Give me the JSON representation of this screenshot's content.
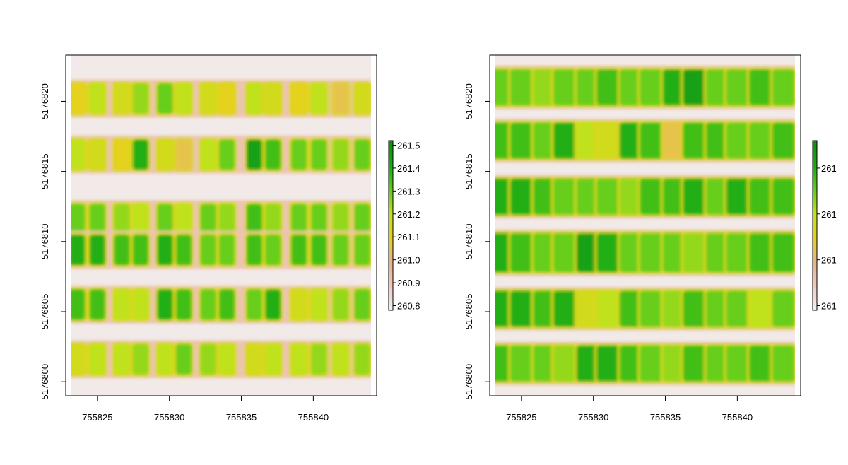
{
  "chart_data": [
    {
      "type": "heatmap",
      "title": "",
      "xlabel": "",
      "ylabel": "",
      "xlim": [
        755822.8,
        755844.4
      ],
      "ylim": [
        5176799.0,
        5176823.3
      ],
      "x_ticks": [
        755825,
        755830,
        755835,
        755840
      ],
      "x_tick_labels": [
        "755825",
        "755830",
        "755835",
        "755840"
      ],
      "y_ticks": [
        5176800,
        5176805,
        5176810,
        5176815,
        5176820
      ],
      "y_tick_labels": [
        "5176800",
        "5176805",
        "5176810",
        "5176815",
        "5176820"
      ],
      "colorbar": {
        "min": 260.78,
        "max": 261.52,
        "ticks": [
          260.8,
          260.9,
          261.0,
          261.1,
          261.2,
          261.3,
          261.4,
          261.5
        ],
        "tick_labels": [
          "260.8",
          "260.9",
          "261.0",
          "261.1",
          "261.2",
          "261.3",
          "261.4",
          "261.5"
        ],
        "colors": [
          "#f2f2f2",
          "#efc9be",
          "#e8b28a",
          "#e5d21a",
          "#bfe21a",
          "#5fcc1a",
          "#18aa18",
          "#0a8f0a"
        ]
      },
      "rows_y_center": [
        5176820.2,
        5176816.2,
        5176811.7,
        5176809.4,
        5176805.5,
        5176801.6
      ],
      "rows_y_half_height": [
        1.1,
        1.1,
        1.0,
        1.1,
        1.1,
        1.1
      ],
      "plot_columns_x_center": [
        755823.6,
        755825.0,
        755826.7,
        755828.0,
        755829.7,
        755831.0,
        755832.7,
        755834.0,
        755835.9,
        755837.2,
        755839.0,
        755840.4,
        755841.9,
        755843.4
      ],
      "plot_x_half_width": 0.55,
      "row_values": [
        [
          261.1,
          261.2,
          261.15,
          261.25,
          261.3,
          261.2,
          261.15,
          261.1,
          261.2,
          261.15,
          261.1,
          261.2,
          261.05,
          261.15
        ],
        [
          261.2,
          261.15,
          261.1,
          261.4,
          261.15,
          261.05,
          261.2,
          261.3,
          261.45,
          261.35,
          261.3,
          261.3,
          261.25,
          261.3
        ],
        [
          261.3,
          261.3,
          261.25,
          261.2,
          261.3,
          261.2,
          261.3,
          261.25,
          261.35,
          261.25,
          261.3,
          261.3,
          261.25,
          261.3
        ],
        [
          261.4,
          261.4,
          261.35,
          261.35,
          261.4,
          261.35,
          261.3,
          261.3,
          261.35,
          261.3,
          261.35,
          261.35,
          261.3,
          261.3
        ],
        [
          261.35,
          261.35,
          261.2,
          261.2,
          261.4,
          261.35,
          261.3,
          261.35,
          261.3,
          261.4,
          261.15,
          261.2,
          261.25,
          261.3
        ],
        [
          261.15,
          261.2,
          261.2,
          261.25,
          261.2,
          261.3,
          261.25,
          261.2,
          261.15,
          261.2,
          261.2,
          261.25,
          261.2,
          261.25
        ]
      ]
    },
    {
      "type": "heatmap",
      "title": "",
      "xlabel": "",
      "ylabel": "",
      "xlim": [
        755822.8,
        755844.4
      ],
      "ylim": [
        5176799.0,
        5176823.3
      ],
      "x_ticks": [
        755825,
        755830,
        755835,
        755840
      ],
      "x_tick_labels": [
        "755825",
        "755830",
        "755835",
        "755840"
      ],
      "y_ticks": [
        5176800,
        5176805,
        5176810,
        5176815,
        5176820
      ],
      "y_tick_labels": [
        "5176800",
        "5176805",
        "5176810",
        "5176815",
        "5176820"
      ],
      "colorbar": {
        "min": 260.78,
        "max": 261.52,
        "ticks": [
          260.8,
          261.0,
          261.2,
          261.4
        ],
        "tick_labels": [
          "261",
          "261",
          "261",
          "261"
        ],
        "colors": [
          "#f2f2f2",
          "#efc9be",
          "#e8b28a",
          "#e5d21a",
          "#bfe21a",
          "#5fcc1a",
          "#18aa18",
          "#0a8f0a"
        ]
      },
      "rows_y_center": [
        5176821.0,
        5176817.2,
        5176813.2,
        5176809.2,
        5176805.2,
        5176801.3
      ],
      "rows_y_half_height": [
        1.3,
        1.3,
        1.3,
        1.4,
        1.3,
        1.3
      ],
      "plot_columns_x_center": [
        755823.5,
        755825.0,
        755826.6,
        755828.0,
        755829.6,
        755831.0,
        755832.6,
        755834.0,
        755835.6,
        755837.0,
        755838.6,
        755840.0,
        755841.6,
        755843.2
      ],
      "plot_x_half_width": 0.78,
      "row_values": [
        [
          261.3,
          261.3,
          261.25,
          261.3,
          261.3,
          261.35,
          261.3,
          261.3,
          261.4,
          261.45,
          261.3,
          261.3,
          261.35,
          261.3
        ],
        [
          261.35,
          261.35,
          261.3,
          261.4,
          261.2,
          261.15,
          261.4,
          261.35,
          261.05,
          261.35,
          261.35,
          261.3,
          261.3,
          261.35
        ],
        [
          261.4,
          261.4,
          261.35,
          261.3,
          261.3,
          261.3,
          261.25,
          261.35,
          261.35,
          261.4,
          261.3,
          261.4,
          261.35,
          261.35
        ],
        [
          261.4,
          261.35,
          261.3,
          261.3,
          261.45,
          261.4,
          261.3,
          261.3,
          261.3,
          261.25,
          261.3,
          261.3,
          261.35,
          261.35
        ],
        [
          261.4,
          261.4,
          261.35,
          261.4,
          261.15,
          261.2,
          261.35,
          261.3,
          261.25,
          261.35,
          261.3,
          261.3,
          261.2,
          261.3
        ],
        [
          261.35,
          261.3,
          261.3,
          261.25,
          261.4,
          261.4,
          261.35,
          261.3,
          261.25,
          261.35,
          261.3,
          261.3,
          261.35,
          261.3
        ]
      ]
    }
  ]
}
